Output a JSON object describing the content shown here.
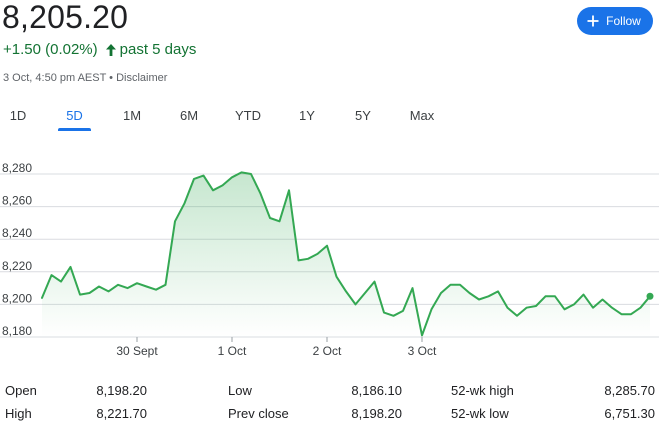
{
  "quote": {
    "price": "8,205.20",
    "change": "+1.50 (0.02%)",
    "period": "past 5 days",
    "timestamp": "3 Oct, 4:50 pm AEST",
    "separator": " • ",
    "disclaimer": "Disclaimer"
  },
  "follow_button": {
    "label": "Follow",
    "icon": "plus-icon",
    "color": "#1a73e8"
  },
  "range_tabs": [
    {
      "label": "1D"
    },
    {
      "label": "5D",
      "active": true
    },
    {
      "label": "1M"
    },
    {
      "label": "6M"
    },
    {
      "label": "YTD"
    },
    {
      "label": "1Y"
    },
    {
      "label": "5Y"
    },
    {
      "label": "Max"
    }
  ],
  "colors": {
    "positive": "#137333",
    "line": "#34a853",
    "accent": "#1a73e8",
    "gridline": "#dadce0"
  },
  "chart_data": {
    "type": "area",
    "y_ticks": [
      "8,280",
      "8,260",
      "8,240",
      "8,220",
      "8,200",
      "8,180"
    ],
    "y_tick_values": [
      8280,
      8260,
      8240,
      8220,
      8200,
      8180
    ],
    "ylim": [
      8180,
      8290
    ],
    "x_tick_labels": [
      "30 Sept",
      "1 Oct",
      "2 Oct",
      "3 Oct"
    ],
    "x_tick_indices": [
      10,
      20,
      30,
      40
    ],
    "grid": true,
    "series": [
      {
        "values": [
          8204,
          8218,
          8214,
          8223,
          8206,
          8207,
          8211,
          8208,
          8212,
          8210,
          8213,
          8211,
          8209,
          8212,
          8251,
          8262,
          8277,
          8279,
          8270,
          8273,
          8278,
          8281,
          8280,
          8268,
          8253,
          8251,
          8270,
          8227,
          8228,
          8231,
          8236,
          8217,
          8208,
          8200,
          8207,
          8214,
          8195,
          8193,
          8196,
          8210,
          8181,
          8197,
          8207,
          8212,
          8212,
          8207,
          8203,
          8205,
          8208,
          8198,
          8193,
          8198,
          8199,
          8205,
          8205,
          8197,
          8200,
          8206,
          8198,
          8203,
          8198,
          8194,
          8194,
          8198,
          8205
        ]
      }
    ],
    "last_point": 8205
  },
  "stats": [
    {
      "label": "Open",
      "value": "8,198.20"
    },
    {
      "label": "High",
      "value": "8,221.70"
    },
    {
      "label": "Low",
      "value": "8,186.10"
    },
    {
      "label": "Prev close",
      "value": "8,198.20"
    },
    {
      "label": "52-wk high",
      "value": "8,285.70"
    },
    {
      "label": "52-wk low",
      "value": "6,751.30"
    }
  ]
}
